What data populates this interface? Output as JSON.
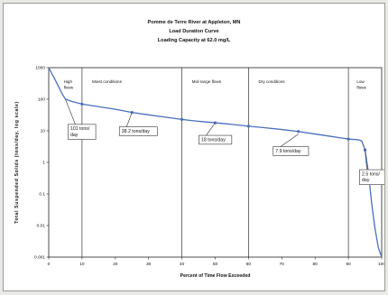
{
  "chart_data": {
    "type": "line",
    "title_lines": [
      "Pomme de Terre River at Appleton, MN",
      "Load Duration Curve",
      "Loading Capacity at 62.0 mg/L"
    ],
    "xlabel": "Percent of Time Flow Exceeded",
    "ylabel": "Total Suspended Solids (tons/day, log scale)",
    "xlim": [
      0,
      100
    ],
    "ylim": [
      0.001,
      1000
    ],
    "y_scale": "log",
    "grid": false,
    "x_ticks": [
      "0",
      "10",
      "20",
      "30",
      "40",
      "50",
      "60",
      "70",
      "80",
      "90",
      "100"
    ],
    "y_ticks": [
      "1000",
      "100",
      "10",
      "1",
      "0.1",
      "0.01",
      "0.001"
    ],
    "zone_dividers_x": [
      10,
      40,
      60,
      90
    ],
    "zones": [
      {
        "label_lines": [
          "High",
          "flows"
        ],
        "x": 4.5
      },
      {
        "label_lines": [
          "Moist conditions"
        ],
        "x": 13
      },
      {
        "label_lines": [
          "Mid-range flows"
        ],
        "x": 43
      },
      {
        "label_lines": [
          "Dry conditions"
        ],
        "x": 63
      },
      {
        "label_lines": [
          "Low",
          "flows"
        ],
        "x": 92.5
      }
    ],
    "series": [
      {
        "color": "#4a6fc0",
        "x": [
          0,
          2,
          4,
          5,
          7,
          10,
          15,
          20,
          25,
          30,
          35,
          40,
          45,
          50,
          55,
          60,
          65,
          70,
          75,
          80,
          85,
          90,
          93,
          94,
          94.5,
          95,
          96,
          97,
          98,
          99,
          100
        ],
        "y": [
          1000,
          400,
          150,
          101,
          85,
          70,
          58,
          48,
          38.2,
          32,
          27,
          23,
          20,
          18,
          16,
          14,
          12.5,
          11,
          9.5,
          7.9,
          6.6,
          5.5,
          5.2,
          4.8,
          3.5,
          2.5,
          0.5,
          0.05,
          0.008,
          0.002,
          0.001
        ]
      }
    ],
    "markers_x": [
      10,
      25,
      40,
      50,
      60,
      75,
      90,
      95
    ],
    "callouts": [
      {
        "lines": [
          "101 tons/",
          "day"
        ],
        "x": 5,
        "y": 101
      },
      {
        "lines": [
          "38.2 tons/day"
        ],
        "x": 25,
        "y": 38.2
      },
      {
        "lines": [
          "18 tons/day"
        ],
        "x": 50,
        "y": 18
      },
      {
        "lines": [
          "7.9 tons/day"
        ],
        "x": 75,
        "y": 7.9
      },
      {
        "lines": [
          "2.5 tons/",
          "day"
        ],
        "x": 95,
        "y": 2.5
      }
    ]
  }
}
